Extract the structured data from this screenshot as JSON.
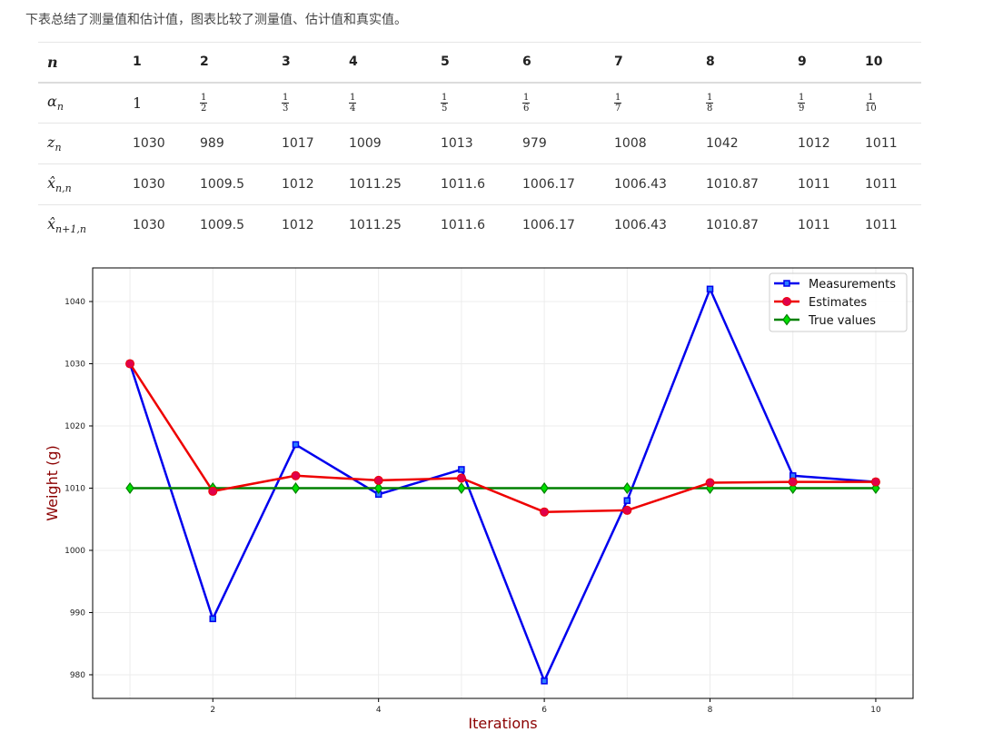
{
  "intro": "下表总结了测量值和估计值，图表比较了测量值、估计值和真实值。",
  "table": {
    "columns": [
      "1",
      "2",
      "3",
      "4",
      "5",
      "6",
      "7",
      "8",
      "9",
      "10"
    ],
    "alpha_first": "1",
    "alpha_fracs": [
      {
        "num": "1",
        "den": "2"
      },
      {
        "num": "1",
        "den": "3"
      },
      {
        "num": "1",
        "den": "4"
      },
      {
        "num": "1",
        "den": "5"
      },
      {
        "num": "1",
        "den": "6"
      },
      {
        "num": "1",
        "den": "7"
      },
      {
        "num": "1",
        "den": "8"
      },
      {
        "num": "1",
        "den": "9"
      },
      {
        "num": "1",
        "den": "10"
      }
    ],
    "z": [
      "1030",
      "989",
      "1017",
      "1009",
      "1013",
      "979",
      "1008",
      "1042",
      "1012",
      "1011"
    ],
    "x_nn": [
      "1030",
      "1009.5",
      "1012",
      "1011.25",
      "1011.6",
      "1006.17",
      "1006.43",
      "1010.87",
      "1011",
      "1011"
    ],
    "x_n1n": [
      "1030",
      "1009.5",
      "1012",
      "1011.25",
      "1011.6",
      "1006.17",
      "1006.43",
      "1010.87",
      "1011",
      "1011"
    ]
  },
  "chart_data": {
    "type": "line",
    "title": "",
    "xlabel": "Iterations",
    "ylabel": "Weight (g)",
    "x": [
      1,
      2,
      3,
      4,
      5,
      6,
      7,
      8,
      9,
      10
    ],
    "xticks": [
      2,
      4,
      6,
      8,
      10
    ],
    "yticks": [
      980,
      990,
      1000,
      1010,
      1020,
      1030,
      1040
    ],
    "xlim": [
      0.55,
      10.45
    ],
    "ylim": [
      976.2,
      1045.4
    ],
    "grid": true,
    "legend_position": "top-right",
    "series": [
      {
        "name": "Measurements",
        "color": "#0000ee",
        "marker": "square",
        "values": [
          1030,
          989,
          1017,
          1009,
          1013,
          979,
          1008,
          1042,
          1012,
          1011
        ]
      },
      {
        "name": "Estimates",
        "color": "#ee0000",
        "marker": "circle",
        "values": [
          1030,
          1009.5,
          1012,
          1011.25,
          1011.6,
          1006.17,
          1006.43,
          1010.87,
          1011,
          1011
        ]
      },
      {
        "name": "True values",
        "color": "#008000",
        "marker": "diamond",
        "values": [
          1010,
          1010,
          1010,
          1010,
          1010,
          1010,
          1010,
          1010,
          1010,
          1010
        ]
      }
    ]
  }
}
